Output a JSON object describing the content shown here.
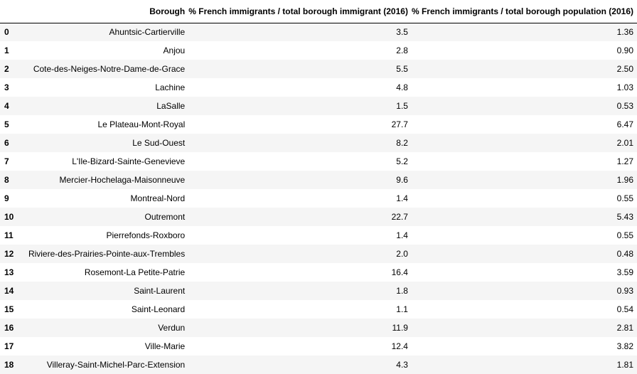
{
  "table": {
    "index_header": "",
    "columns": [
      "Borough",
      "% French immigrants / total borough immigrant (2016)",
      "% French immigrants / total borough population (2016)"
    ],
    "rows": [
      {
        "index": "0",
        "borough": "Ahuntsic-Cartierville",
        "pct_immigrant": "3.5",
        "pct_population": "1.36"
      },
      {
        "index": "1",
        "borough": "Anjou",
        "pct_immigrant": "2.8",
        "pct_population": "0.90"
      },
      {
        "index": "2",
        "borough": "Cote-des-Neiges-Notre-Dame-de-Grace",
        "pct_immigrant": "5.5",
        "pct_population": "2.50"
      },
      {
        "index": "3",
        "borough": "Lachine",
        "pct_immigrant": "4.8",
        "pct_population": "1.03"
      },
      {
        "index": "4",
        "borough": "LaSalle",
        "pct_immigrant": "1.5",
        "pct_population": "0.53"
      },
      {
        "index": "5",
        "borough": "Le Plateau-Mont-Royal",
        "pct_immigrant": "27.7",
        "pct_population": "6.47"
      },
      {
        "index": "6",
        "borough": "Le Sud-Ouest",
        "pct_immigrant": "8.2",
        "pct_population": "2.01"
      },
      {
        "index": "7",
        "borough": "L'Ile-Bizard-Sainte-Genevieve",
        "pct_immigrant": "5.2",
        "pct_population": "1.27"
      },
      {
        "index": "8",
        "borough": "Mercier-Hochelaga-Maisonneuve",
        "pct_immigrant": "9.6",
        "pct_population": "1.96"
      },
      {
        "index": "9",
        "borough": "Montreal-Nord",
        "pct_immigrant": "1.4",
        "pct_population": "0.55"
      },
      {
        "index": "10",
        "borough": "Outremont",
        "pct_immigrant": "22.7",
        "pct_population": "5.43"
      },
      {
        "index": "11",
        "borough": "Pierrefonds-Roxboro",
        "pct_immigrant": "1.4",
        "pct_population": "0.55"
      },
      {
        "index": "12",
        "borough": "Riviere-des-Prairies-Pointe-aux-Trembles",
        "pct_immigrant": "2.0",
        "pct_population": "0.48"
      },
      {
        "index": "13",
        "borough": "Rosemont-La Petite-Patrie",
        "pct_immigrant": "16.4",
        "pct_population": "3.59"
      },
      {
        "index": "14",
        "borough": "Saint-Laurent",
        "pct_immigrant": "1.8",
        "pct_population": "0.93"
      },
      {
        "index": "15",
        "borough": "Saint-Leonard",
        "pct_immigrant": "1.1",
        "pct_population": "0.54"
      },
      {
        "index": "16",
        "borough": "Verdun",
        "pct_immigrant": "11.9",
        "pct_population": "2.81"
      },
      {
        "index": "17",
        "borough": "Ville-Marie",
        "pct_immigrant": "12.4",
        "pct_population": "3.82"
      },
      {
        "index": "18",
        "borough": "Villeray-Saint-Michel-Parc-Extension",
        "pct_immigrant": "4.3",
        "pct_population": "1.81"
      }
    ]
  },
  "colors": {
    "row_stripe": "#f5f5f5",
    "row_plain": "#ffffff",
    "header_rule": "#000000",
    "text": "#000000"
  }
}
